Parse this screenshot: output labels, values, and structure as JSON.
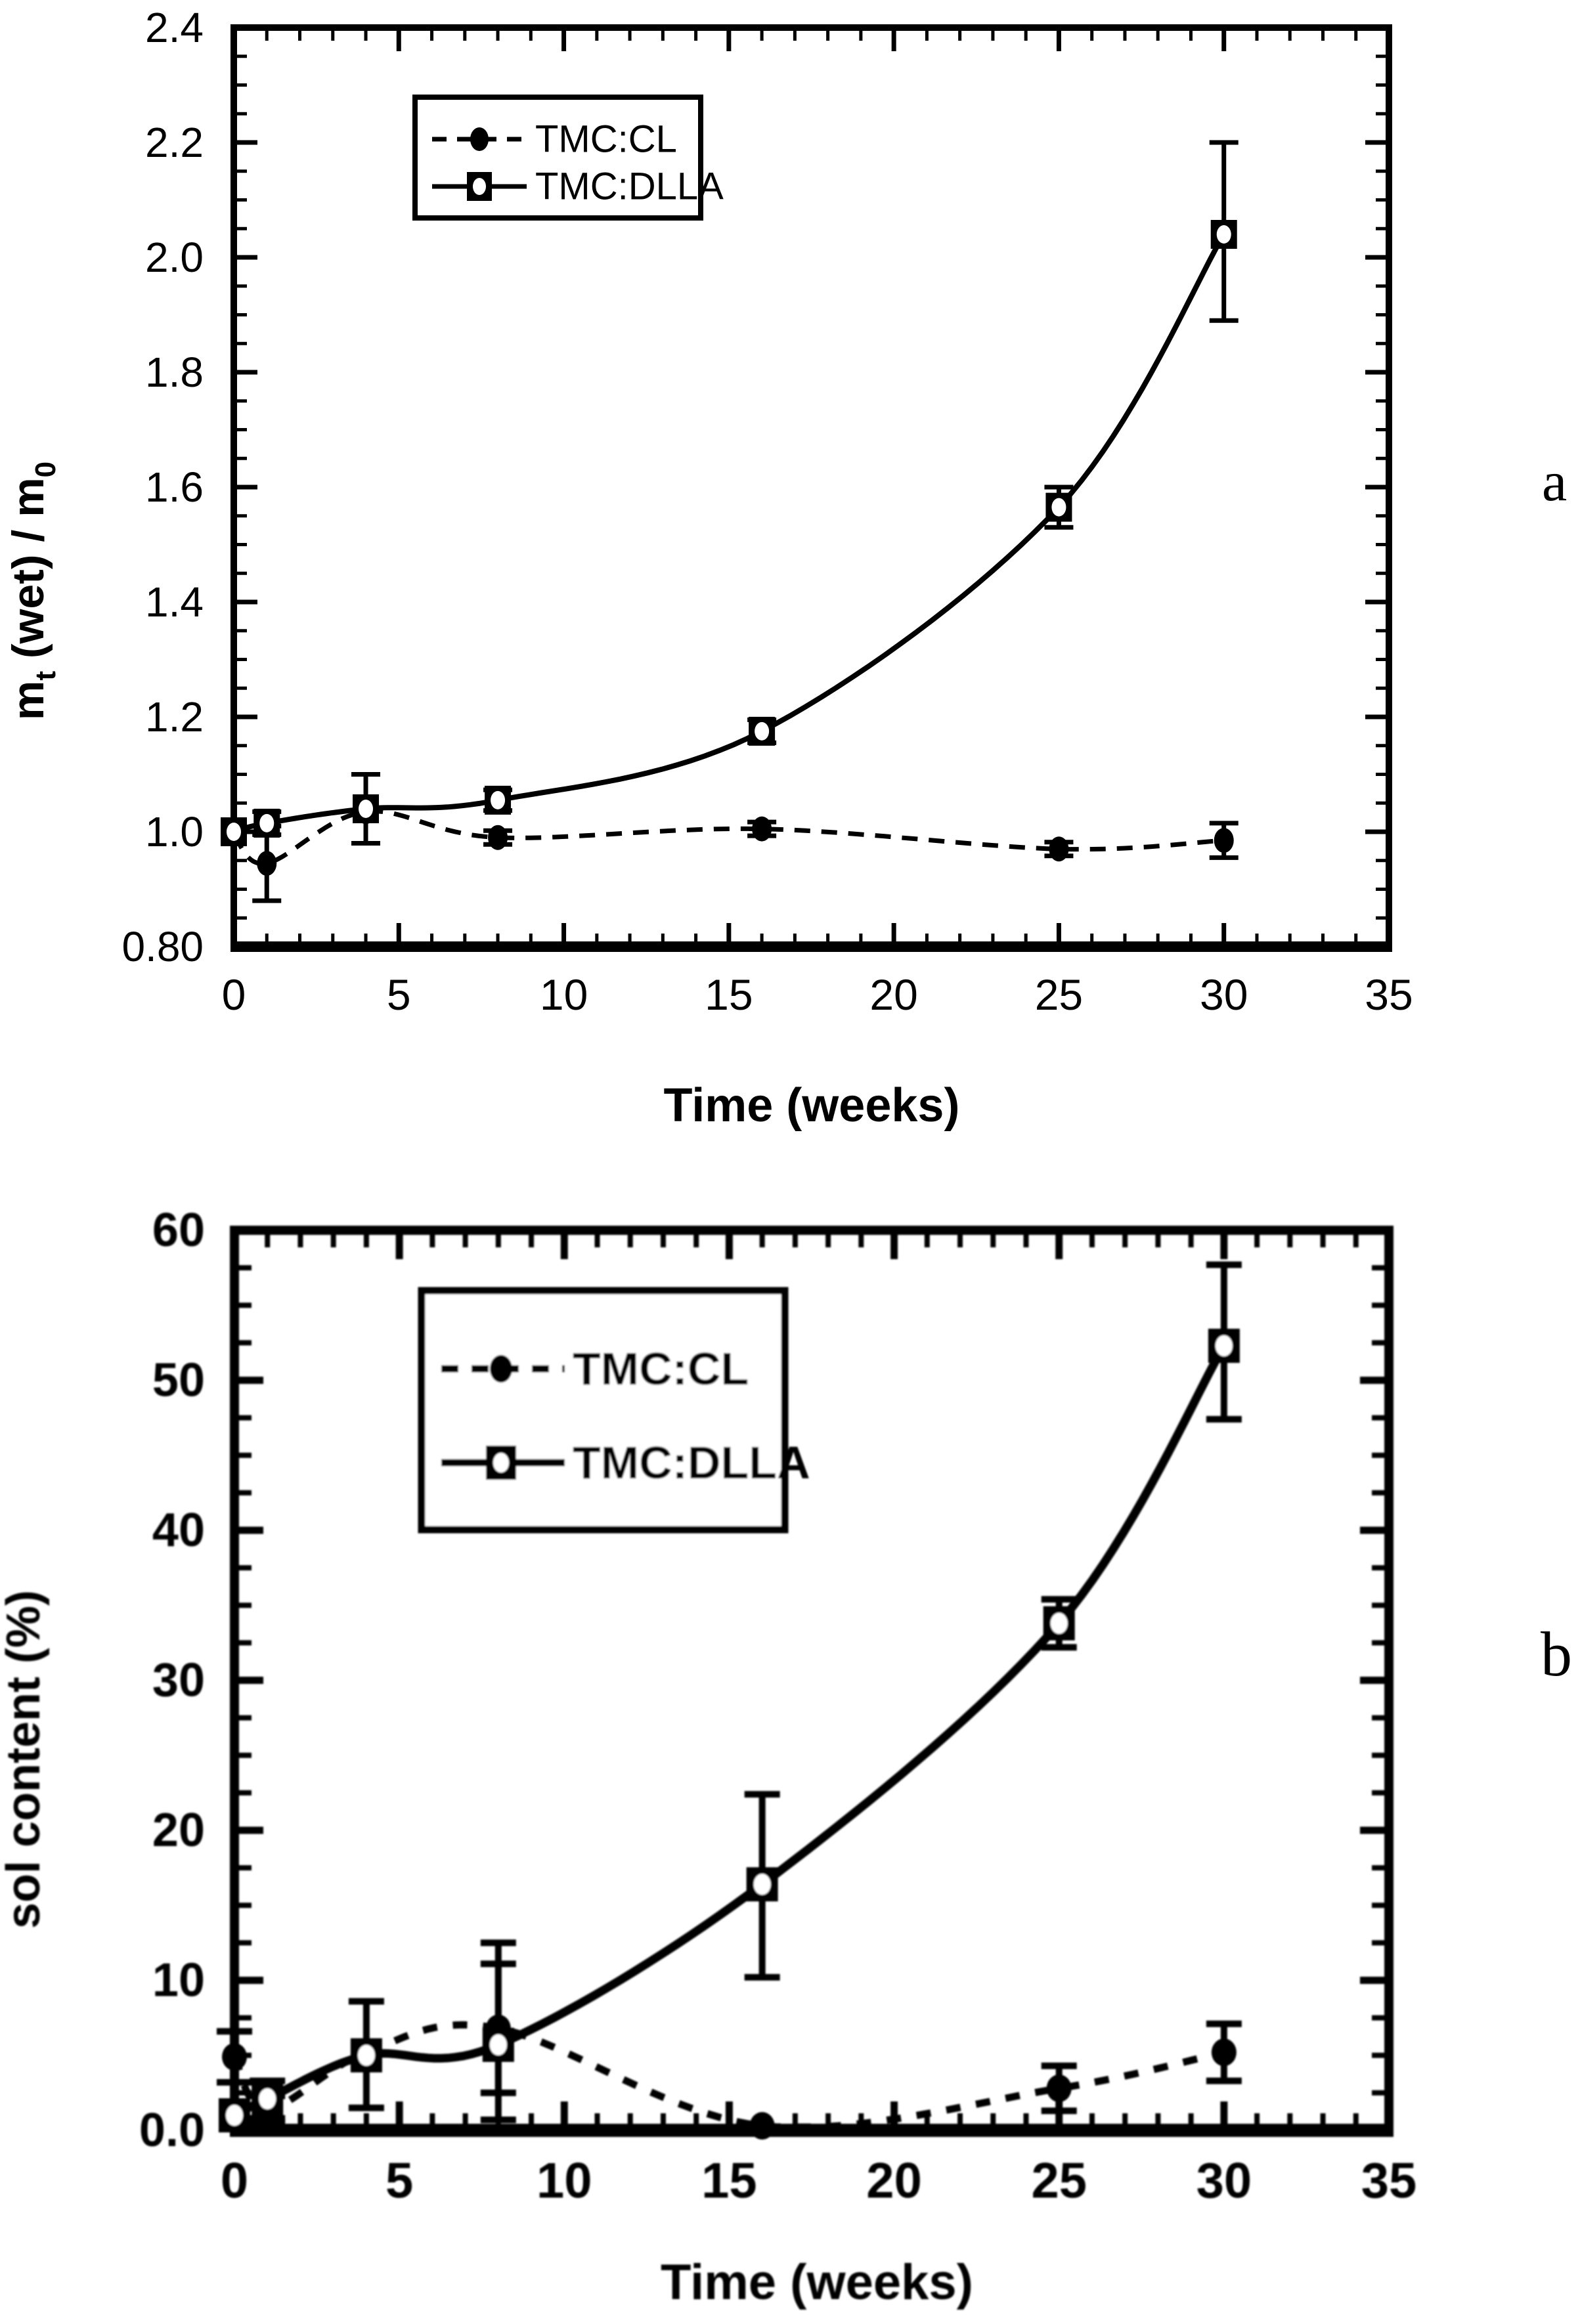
{
  "figure": {
    "background_color": "#ffffff",
    "ink_color": "#000000",
    "description": "Two stacked scientific line charts (panels a and b) comparing TMC:CL and TMC:DLLA over time"
  },
  "chart_data": [
    {
      "panel_label": "a",
      "type": "line",
      "xlabel": "Time (weeks)",
      "ylabel": "m t (wet) / m 0",
      "ylabel_parts": [
        {
          "text": "m"
        },
        {
          "text": "t",
          "subscript": true
        },
        {
          "text": " (wet) / m"
        },
        {
          "text": "0",
          "subscript": true
        }
      ],
      "xlim": [
        0,
        35
      ],
      "ylim": [
        0.8,
        2.4
      ],
      "x_tick_values": [
        0,
        5,
        10,
        15,
        20,
        25,
        30,
        35
      ],
      "x_tick_labels": [
        "0",
        "5",
        "10",
        "15",
        "20",
        "25",
        "30",
        "35"
      ],
      "x_minor_step": 1,
      "y_tick_values": [
        0.8,
        1.0,
        1.2,
        1.4,
        1.6,
        1.8,
        2.0,
        2.2,
        2.4
      ],
      "y_tick_labels": [
        "0.80",
        "1.0",
        "1.2",
        "1.4",
        "1.6",
        "1.8",
        "2.0",
        "2.2",
        "2.4"
      ],
      "y_minor_step": 0.05,
      "grid": false,
      "legend": {
        "position": "upper-left-inside",
        "items": [
          {
            "label": "TMC:CL",
            "marker": "filled-circle",
            "line_style": "dashed"
          },
          {
            "label": "TMC:DLLA",
            "marker": "open-square",
            "line_style": "solid"
          }
        ]
      },
      "series": [
        {
          "name": "TMC:CL",
          "marker": "filled-circle",
          "line_style": "dashed",
          "x": [
            0,
            1,
            4,
            8,
            16,
            25,
            30
          ],
          "y": [
            0.995,
            0.945,
            1.035,
            0.99,
            1.005,
            0.97,
            0.985
          ],
          "err_plus": [
            0,
            0.065,
            0,
            0.012,
            0.012,
            0.012,
            0.03
          ],
          "err_minus": [
            0,
            0.065,
            0,
            0.012,
            0.012,
            0.012,
            0.03
          ]
        },
        {
          "name": "TMC:DLLA",
          "marker": "open-square",
          "line_style": "solid",
          "x": [
            0,
            1,
            4,
            8,
            16,
            25,
            30
          ],
          "y": [
            1.0,
            1.015,
            1.04,
            1.055,
            1.175,
            1.565,
            2.04
          ],
          "err_plus": [
            0,
            0.02,
            0.06,
            0.018,
            0.02,
            0.035,
            0.16
          ],
          "err_minus": [
            0,
            0.02,
            0.06,
            0.018,
            0.02,
            0.035,
            0.15
          ]
        }
      ]
    },
    {
      "panel_label": "b",
      "type": "line",
      "xlabel": "Time (weeks)",
      "ylabel": "sol content (%)",
      "ylabel_parts": [
        {
          "text": "sol content (%)"
        }
      ],
      "xlim": [
        0,
        35
      ],
      "ylim": [
        0,
        60
      ],
      "x_tick_values": [
        0,
        5,
        10,
        15,
        20,
        25,
        30,
        35
      ],
      "x_tick_labels": [
        "0",
        "5",
        "10",
        "15",
        "20",
        "25",
        "30",
        "35"
      ],
      "x_minor_step": 1,
      "y_tick_values": [
        0,
        10,
        20,
        30,
        40,
        50,
        60
      ],
      "y_tick_labels": [
        "0.0",
        "10",
        "20",
        "30",
        "40",
        "50",
        "60"
      ],
      "y_minor_step": 2.5,
      "grid": false,
      "legend": {
        "position": "upper-left-inside",
        "items": [
          {
            "label": "TMC:CL",
            "marker": "filled-circle",
            "line_style": "dashed"
          },
          {
            "label": "TMC:DLLA",
            "marker": "open-square",
            "line_style": "solid"
          }
        ]
      },
      "series": [
        {
          "name": "TMC:CL",
          "marker": "filled-circle",
          "line_style": "dashed",
          "x": [
            0,
            1,
            4,
            8,
            16,
            25,
            30
          ],
          "y": [
            4.9,
            1.4,
            5.2,
            6.8,
            0.3,
            2.8,
            5.2
          ],
          "err_plus": [
            1.7,
            0.9,
            0,
            4.3,
            0,
            1.5,
            1.9
          ],
          "err_minus": [
            1.7,
            0.9,
            0,
            4.3,
            0,
            1.5,
            1.9
          ]
        },
        {
          "name": "TMC:DLLA",
          "marker": "open-square",
          "line_style": "solid",
          "x": [
            0,
            1,
            4,
            8,
            16,
            25,
            30
          ],
          "y": [
            1.0,
            2.1,
            5.0,
            5.7,
            16.4,
            33.8,
            52.3
          ],
          "err_plus": [
            0,
            1.2,
            3.6,
            6.8,
            6.0,
            1.6,
            5.4
          ],
          "err_minus": [
            0,
            1.3,
            3.5,
            5.0,
            6.2,
            1.6,
            4.9
          ]
        }
      ]
    }
  ]
}
